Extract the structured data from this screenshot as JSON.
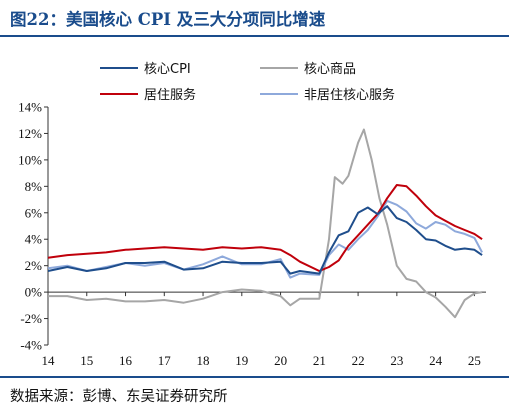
{
  "title": "图22：美国核心 CPI 及三大分项同比增速",
  "source": "数据来源：彭博、东吴证券研究所",
  "chart_data": {
    "type": "line",
    "title": "图22：美国核心 CPI 及三大分项同比增速",
    "xlabel": "",
    "ylabel": "",
    "xlim": [
      2014.0,
      2025.3
    ],
    "ylim": [
      -4,
      14
    ],
    "y_unit": "%",
    "x_tick_labels": [
      "14",
      "15",
      "16",
      "17",
      "18",
      "19",
      "20",
      "21",
      "22",
      "23",
      "24",
      "25"
    ],
    "y_tick_labels": [
      "-4%",
      "-2%",
      "0%",
      "2%",
      "4%",
      "6%",
      "8%",
      "10%",
      "12%",
      "14%"
    ],
    "grid": false,
    "legend_position": "top",
    "series": [
      {
        "name": "核心CPI",
        "color": "#1f4e8c",
        "points": [
          [
            2014.0,
            1.6
          ],
          [
            2014.5,
            1.9
          ],
          [
            2015.0,
            1.6
          ],
          [
            2015.5,
            1.8
          ],
          [
            2016.0,
            2.2
          ],
          [
            2016.5,
            2.2
          ],
          [
            2017.0,
            2.3
          ],
          [
            2017.5,
            1.7
          ],
          [
            2018.0,
            1.8
          ],
          [
            2018.5,
            2.3
          ],
          [
            2019.0,
            2.2
          ],
          [
            2019.5,
            2.2
          ],
          [
            2020.0,
            2.3
          ],
          [
            2020.25,
            1.4
          ],
          [
            2020.5,
            1.6
          ],
          [
            2021.0,
            1.4
          ],
          [
            2021.25,
            3.0
          ],
          [
            2021.5,
            4.3
          ],
          [
            2021.75,
            4.6
          ],
          [
            2022.0,
            6.0
          ],
          [
            2022.25,
            6.4
          ],
          [
            2022.5,
            5.9
          ],
          [
            2022.75,
            6.5
          ],
          [
            2023.0,
            5.6
          ],
          [
            2023.25,
            5.3
          ],
          [
            2023.5,
            4.7
          ],
          [
            2023.75,
            4.0
          ],
          [
            2024.0,
            3.9
          ],
          [
            2024.25,
            3.5
          ],
          [
            2024.5,
            3.2
          ],
          [
            2024.75,
            3.3
          ],
          [
            2025.0,
            3.2
          ],
          [
            2025.2,
            2.8
          ]
        ]
      },
      {
        "name": "核心商品",
        "color": "#a6a6a6",
        "points": [
          [
            2014.0,
            -0.3
          ],
          [
            2014.5,
            -0.3
          ],
          [
            2015.0,
            -0.6
          ],
          [
            2015.5,
            -0.5
          ],
          [
            2016.0,
            -0.7
          ],
          [
            2016.5,
            -0.7
          ],
          [
            2017.0,
            -0.6
          ],
          [
            2017.5,
            -0.8
          ],
          [
            2018.0,
            -0.5
          ],
          [
            2018.5,
            0.0
          ],
          [
            2019.0,
            0.2
          ],
          [
            2019.5,
            0.1
          ],
          [
            2020.0,
            -0.3
          ],
          [
            2020.25,
            -1.0
          ],
          [
            2020.5,
            -0.5
          ],
          [
            2021.0,
            -0.5
          ],
          [
            2021.25,
            4.0
          ],
          [
            2021.4,
            8.7
          ],
          [
            2021.6,
            8.2
          ],
          [
            2021.75,
            8.8
          ],
          [
            2022.0,
            11.3
          ],
          [
            2022.15,
            12.3
          ],
          [
            2022.35,
            10.0
          ],
          [
            2022.55,
            7.1
          ],
          [
            2022.75,
            5.1
          ],
          [
            2023.0,
            2.0
          ],
          [
            2023.25,
            1.0
          ],
          [
            2023.5,
            0.8
          ],
          [
            2023.75,
            0.0
          ],
          [
            2024.0,
            -0.4
          ],
          [
            2024.25,
            -1.1
          ],
          [
            2024.5,
            -1.9
          ],
          [
            2024.75,
            -0.6
          ],
          [
            2025.0,
            -0.1
          ],
          [
            2025.2,
            0.0
          ]
        ]
      },
      {
        "name": "居住服务",
        "color": "#c0000b",
        "points": [
          [
            2014.0,
            2.6
          ],
          [
            2014.5,
            2.8
          ],
          [
            2015.0,
            2.9
          ],
          [
            2015.5,
            3.0
          ],
          [
            2016.0,
            3.2
          ],
          [
            2016.5,
            3.3
          ],
          [
            2017.0,
            3.4
          ],
          [
            2017.5,
            3.3
          ],
          [
            2018.0,
            3.2
          ],
          [
            2018.5,
            3.4
          ],
          [
            2019.0,
            3.3
          ],
          [
            2019.5,
            3.4
          ],
          [
            2020.0,
            3.2
          ],
          [
            2020.25,
            2.8
          ],
          [
            2020.5,
            2.3
          ],
          [
            2021.0,
            1.6
          ],
          [
            2021.25,
            1.9
          ],
          [
            2021.5,
            2.4
          ],
          [
            2021.75,
            3.5
          ],
          [
            2022.0,
            4.3
          ],
          [
            2022.25,
            5.1
          ],
          [
            2022.5,
            5.9
          ],
          [
            2022.75,
            7.1
          ],
          [
            2023.0,
            8.1
          ],
          [
            2023.25,
            8.0
          ],
          [
            2023.5,
            7.3
          ],
          [
            2023.75,
            6.5
          ],
          [
            2024.0,
            5.8
          ],
          [
            2024.25,
            5.4
          ],
          [
            2024.5,
            5.0
          ],
          [
            2024.75,
            4.7
          ],
          [
            2025.0,
            4.4
          ],
          [
            2025.2,
            4.0
          ]
        ]
      },
      {
        "name": "非居住核心服务",
        "color": "#8ea9db",
        "points": [
          [
            2014.0,
            1.8
          ],
          [
            2014.5,
            2.0
          ],
          [
            2015.0,
            1.6
          ],
          [
            2015.5,
            1.9
          ],
          [
            2016.0,
            2.2
          ],
          [
            2016.5,
            2.0
          ],
          [
            2017.0,
            2.2
          ],
          [
            2017.5,
            1.7
          ],
          [
            2018.0,
            2.1
          ],
          [
            2018.5,
            2.7
          ],
          [
            2019.0,
            2.1
          ],
          [
            2019.5,
            2.1
          ],
          [
            2020.0,
            2.5
          ],
          [
            2020.25,
            1.1
          ],
          [
            2020.5,
            1.4
          ],
          [
            2021.0,
            1.3
          ],
          [
            2021.25,
            2.8
          ],
          [
            2021.5,
            3.6
          ],
          [
            2021.75,
            3.2
          ],
          [
            2022.0,
            4.0
          ],
          [
            2022.25,
            4.7
          ],
          [
            2022.5,
            5.7
          ],
          [
            2022.75,
            6.9
          ],
          [
            2023.0,
            6.6
          ],
          [
            2023.25,
            6.1
          ],
          [
            2023.5,
            5.2
          ],
          [
            2023.75,
            4.8
          ],
          [
            2024.0,
            5.3
          ],
          [
            2024.25,
            5.1
          ],
          [
            2024.5,
            4.6
          ],
          [
            2024.75,
            4.4
          ],
          [
            2025.0,
            4.1
          ],
          [
            2025.2,
            3.0
          ]
        ]
      }
    ]
  }
}
